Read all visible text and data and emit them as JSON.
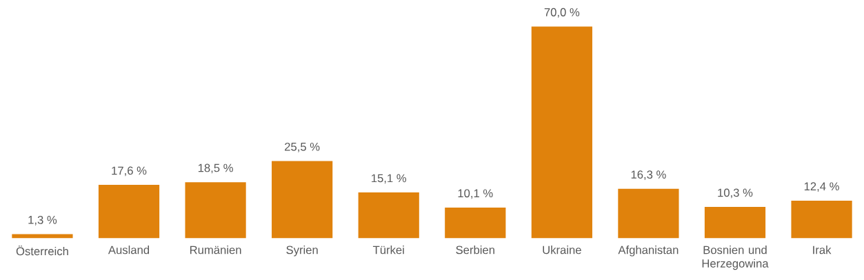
{
  "chart_data": {
    "type": "bar",
    "categories": [
      "Österreich",
      "Ausland",
      "Rumänien",
      "Syrien",
      "Türkei",
      "Serbien",
      "Ukraine",
      "Afghanistan",
      "Bosnien und Herzegowina",
      "Irak"
    ],
    "values": [
      1.3,
      17.6,
      18.5,
      25.5,
      15.1,
      10.1,
      70.0,
      16.3,
      10.3,
      12.4
    ],
    "value_labels": [
      "1,3 %",
      "17,6 %",
      "18,5 %",
      "25,5 %",
      "15,1 %",
      "10,1 %",
      "70,0 %",
      "16,3 %",
      "10,3 %",
      "12,4 %"
    ],
    "color": "#e0820c"
  }
}
